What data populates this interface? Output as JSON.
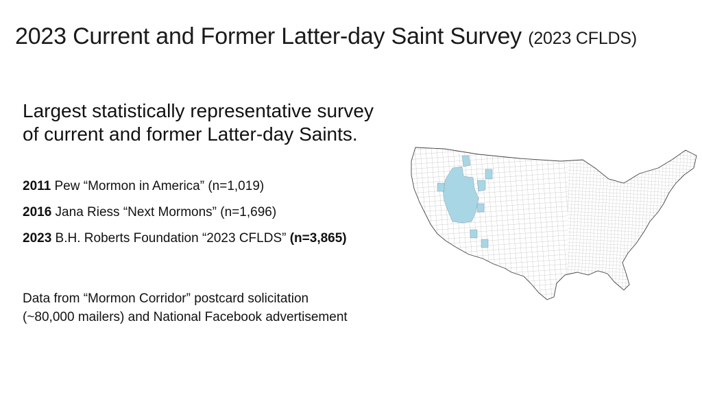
{
  "slide": {
    "title": "2023 Current and Former Latter-day Saint Survey",
    "title_abbr": "(2023 CFLDS)",
    "headline_line1": "Largest statistically representative survey",
    "headline_line2": "of current and former Latter-day Saints.",
    "studies": [
      {
        "year": "2011",
        "text": " Pew “Mormon in America” (n=1,019)",
        "n_bold": ""
      },
      {
        "year": "2016",
        "text": " Jana Riess  “Next Mormons” (n=1,696)",
        "n_bold": ""
      },
      {
        "year": "2023",
        "text": " B.H. Roberts Foundation “2023 CFLDS” ",
        "n_bold": "(n=3,865)"
      }
    ],
    "note_line1": "Data from “Mormon Corridor” postcard solicitation",
    "note_line2": "(~80,000 mailers) and National Facebook advertisement"
  },
  "map": {
    "highlight_color": "#a9d6e5",
    "border_color": "#444444",
    "fill_color": "#ffffff"
  }
}
